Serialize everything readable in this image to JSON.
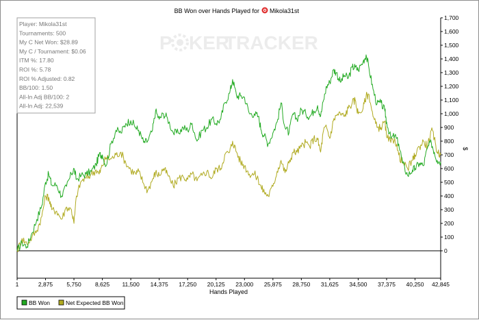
{
  "chart_data": {
    "type": "line",
    "title_prefix": "BB Won over Hands Played for",
    "player_name": "Mikola31st",
    "xlabel": "Hands Played",
    "ylabel": "$",
    "xlim": [
      1,
      42845
    ],
    "ylim": [
      -100,
      1700
    ],
    "x_ticks": [
      1,
      2875,
      5750,
      8625,
      11500,
      14375,
      17250,
      20125,
      23000,
      25875,
      28750,
      31625,
      34500,
      37375,
      40250,
      42845
    ],
    "x_tick_labels": [
      "1",
      "2,875",
      "5,750",
      "8,625",
      "11,500",
      "14,375",
      "17,250",
      "20,125",
      "23,000",
      "25,875",
      "28,750",
      "31,625",
      "34,500",
      "37,375",
      "40,250",
      "42,845"
    ],
    "y_ticks": [
      0,
      100,
      200,
      300,
      400,
      500,
      600,
      700,
      800,
      900,
      1000,
      1100,
      1200,
      1300,
      1400,
      1500,
      1600,
      1700
    ],
    "y_tick_labels": [
      "0",
      "100",
      "200",
      "300",
      "400",
      "500",
      "600",
      "700",
      "800",
      "900",
      "1,000",
      "1,100",
      "1,200",
      "1,300",
      "1,400",
      "1,500",
      "1,600",
      "1,700"
    ],
    "series": [
      {
        "name": "BB Won",
        "color": "#22aa22",
        "points": [
          [
            1,
            0
          ],
          [
            500,
            60
          ],
          [
            1000,
            30
          ],
          [
            1500,
            130
          ],
          [
            2000,
            230
          ],
          [
            2500,
            330
          ],
          [
            2875,
            500
          ],
          [
            3200,
            560
          ],
          [
            3500,
            480
          ],
          [
            4000,
            480
          ],
          [
            4500,
            400
          ],
          [
            5000,
            470
          ],
          [
            5500,
            560
          ],
          [
            5750,
            600
          ],
          [
            6000,
            520
          ],
          [
            6500,
            550
          ],
          [
            7000,
            560
          ],
          [
            7500,
            580
          ],
          [
            8000,
            630
          ],
          [
            8300,
            700
          ],
          [
            8625,
            700
          ],
          [
            9000,
            620
          ],
          [
            9500,
            780
          ],
          [
            10000,
            880
          ],
          [
            10500,
            860
          ],
          [
            11000,
            930
          ],
          [
            11500,
            950
          ],
          [
            12000,
            900
          ],
          [
            12300,
            880
          ],
          [
            12800,
            790
          ],
          [
            13200,
            800
          ],
          [
            13700,
            880
          ],
          [
            14000,
            1020
          ],
          [
            14375,
            960
          ],
          [
            14800,
            1000
          ],
          [
            15200,
            970
          ],
          [
            15800,
            860
          ],
          [
            16300,
            860
          ],
          [
            16800,
            900
          ],
          [
            17250,
            880
          ],
          [
            17700,
            930
          ],
          [
            18200,
            800
          ],
          [
            18700,
            880
          ],
          [
            19200,
            900
          ],
          [
            19700,
            960
          ],
          [
            20125,
            930
          ],
          [
            20600,
            960
          ],
          [
            21000,
            1080
          ],
          [
            21500,
            1150
          ],
          [
            21800,
            1250
          ],
          [
            22200,
            1130
          ],
          [
            22600,
            1130
          ],
          [
            23000,
            1120
          ],
          [
            23500,
            1000
          ],
          [
            24000,
            1000
          ],
          [
            24400,
            980
          ],
          [
            24700,
            880
          ],
          [
            25000,
            840
          ],
          [
            25400,
            780
          ],
          [
            25875,
            860
          ],
          [
            26300,
            940
          ],
          [
            26700,
            1080
          ],
          [
            27100,
            900
          ],
          [
            27500,
            860
          ],
          [
            27900,
            1000
          ],
          [
            28300,
            960
          ],
          [
            28750,
            1030
          ],
          [
            29200,
            1000
          ],
          [
            29600,
            980
          ],
          [
            30000,
            1020
          ],
          [
            30400,
            1060
          ],
          [
            30700,
            980
          ],
          [
            31000,
            1100
          ],
          [
            31300,
            1200
          ],
          [
            31625,
            1230
          ],
          [
            32000,
            1320
          ],
          [
            32300,
            1300
          ],
          [
            32700,
            1230
          ],
          [
            33100,
            1280
          ],
          [
            33500,
            1260
          ],
          [
            33900,
            1340
          ],
          [
            34200,
            1340
          ],
          [
            34500,
            1320
          ],
          [
            35000,
            1380
          ],
          [
            35300,
            1430
          ],
          [
            35600,
            1330
          ],
          [
            36000,
            1180
          ],
          [
            36400,
            1070
          ],
          [
            36800,
            1080
          ],
          [
            37200,
            1020
          ],
          [
            37375,
            940
          ],
          [
            37800,
            820
          ],
          [
            38200,
            840
          ],
          [
            38600,
            780
          ],
          [
            39000,
            640
          ],
          [
            39500,
            550
          ],
          [
            40000,
            590
          ],
          [
            40250,
            600
          ],
          [
            40700,
            640
          ],
          [
            41100,
            620
          ],
          [
            41500,
            750
          ],
          [
            41900,
            790
          ],
          [
            42200,
            720
          ],
          [
            42500,
            660
          ],
          [
            42845,
            650
          ]
        ]
      },
      {
        "name": "Net Expected BB Won",
        "color": "#b0aa20",
        "points": [
          [
            1,
            0
          ],
          [
            500,
            90
          ],
          [
            1000,
            50
          ],
          [
            1500,
            100
          ],
          [
            2000,
            150
          ],
          [
            2500,
            250
          ],
          [
            2875,
            400
          ],
          [
            3200,
            390
          ],
          [
            3500,
            300
          ],
          [
            4000,
            290
          ],
          [
            4500,
            230
          ],
          [
            5000,
            320
          ],
          [
            5500,
            300
          ],
          [
            5750,
            200
          ],
          [
            6000,
            400
          ],
          [
            6500,
            510
          ],
          [
            7000,
            530
          ],
          [
            7500,
            560
          ],
          [
            8000,
            590
          ],
          [
            8300,
            560
          ],
          [
            8625,
            620
          ],
          [
            9000,
            680
          ],
          [
            9500,
            670
          ],
          [
            10000,
            700
          ],
          [
            10500,
            720
          ],
          [
            11000,
            640
          ],
          [
            11500,
            590
          ],
          [
            12000,
            560
          ],
          [
            12300,
            580
          ],
          [
            12800,
            490
          ],
          [
            13200,
            440
          ],
          [
            13700,
            520
          ],
          [
            14000,
            570
          ],
          [
            14375,
            550
          ],
          [
            14800,
            600
          ],
          [
            15200,
            560
          ],
          [
            15800,
            470
          ],
          [
            16300,
            530
          ],
          [
            16800,
            540
          ],
          [
            17250,
            520
          ],
          [
            17700,
            560
          ],
          [
            18200,
            510
          ],
          [
            18700,
            550
          ],
          [
            19200,
            580
          ],
          [
            19700,
            530
          ],
          [
            20125,
            600
          ],
          [
            20600,
            600
          ],
          [
            21000,
            700
          ],
          [
            21500,
            720
          ],
          [
            21800,
            800
          ],
          [
            22200,
            720
          ],
          [
            22600,
            650
          ],
          [
            23000,
            620
          ],
          [
            23500,
            560
          ],
          [
            24000,
            560
          ],
          [
            24400,
            520
          ],
          [
            24700,
            460
          ],
          [
            25000,
            430
          ],
          [
            25400,
            400
          ],
          [
            25875,
            470
          ],
          [
            26300,
            580
          ],
          [
            26700,
            660
          ],
          [
            27100,
            570
          ],
          [
            27500,
            640
          ],
          [
            27900,
            720
          ],
          [
            28300,
            720
          ],
          [
            28750,
            760
          ],
          [
            29200,
            790
          ],
          [
            29600,
            760
          ],
          [
            30000,
            820
          ],
          [
            30400,
            810
          ],
          [
            30700,
            720
          ],
          [
            31000,
            880
          ],
          [
            31300,
            900
          ],
          [
            31625,
            820
          ],
          [
            32000,
            950
          ],
          [
            32300,
            990
          ],
          [
            32700,
            1000
          ],
          [
            33100,
            980
          ],
          [
            33500,
            1040
          ],
          [
            33900,
            1080
          ],
          [
            34200,
            1100
          ],
          [
            34500,
            1000
          ],
          [
            35000,
            1040
          ],
          [
            35300,
            1130
          ],
          [
            35600,
            1140
          ],
          [
            36000,
            980
          ],
          [
            36400,
            900
          ],
          [
            36800,
            900
          ],
          [
            37200,
            940
          ],
          [
            37375,
            830
          ],
          [
            37800,
            790
          ],
          [
            38200,
            820
          ],
          [
            38600,
            700
          ],
          [
            39000,
            640
          ],
          [
            39500,
            600
          ],
          [
            40000,
            660
          ],
          [
            40250,
            700
          ],
          [
            40700,
            760
          ],
          [
            41100,
            800
          ],
          [
            41500,
            760
          ],
          [
            41900,
            880
          ],
          [
            42200,
            820
          ],
          [
            42500,
            720
          ],
          [
            42845,
            700
          ]
        ]
      }
    ],
    "legend_placement": "bottom-left",
    "grid": false
  },
  "watermark": {
    "left": "P",
    "right": "KER",
    "tracker": "TRACKER"
  },
  "stats": [
    "Player: Mikola31st",
    "Tournaments: 500",
    "My C Net Won: $28.89",
    "My C / Tournament: $0.06",
    "ITM %: 17.80",
    "ROI %: 5.78",
    "ROI % Adjusted: 0.82",
    "BB/100: 1.50",
    "All-In Adj BB/100: 2",
    "All-In Adj: 22,539"
  ],
  "colors": {
    "bb_won": "#22aa22",
    "net_expected": "#b0aa20",
    "poker_icon": "#e03030",
    "axis": "#000000"
  }
}
